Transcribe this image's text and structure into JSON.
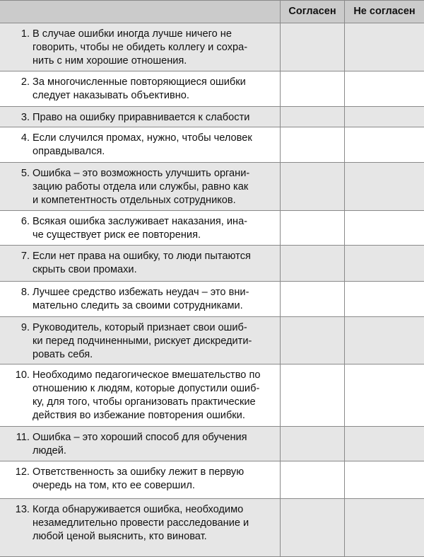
{
  "header": {
    "col_agree": "Согласен",
    "col_disagree": "Не согласен"
  },
  "colors": {
    "header_bg": "#cbcbcb",
    "odd_row_bg": "#e6e6e6",
    "even_row_bg": "#ffffff",
    "grid": "#8a8a8a"
  },
  "items": [
    {
      "num": "1.",
      "lines": [
        "В случае ошибки иногда лучше ничего не",
        "говорить, чтобы не обидеть коллегу и сохра-",
        "нить с ним хорошие отношения."
      ]
    },
    {
      "num": "2.",
      "lines": [
        "За многочисленные повторяющиеся ошибки",
        "следует наказывать объективно."
      ]
    },
    {
      "num": "3.",
      "lines": [
        "Право на ошибку приравнивается к слабости"
      ]
    },
    {
      "num": "4.",
      "lines": [
        " Если случился промах, нужно, чтобы человек",
        " оправдывался."
      ]
    },
    {
      "num": "5.",
      "lines": [
        "Ошибка – это возможность улучшить органи-",
        "зацию работы отдела или службы, равно как",
        "и компетентность отдельных сотрудников."
      ]
    },
    {
      "num": "6.",
      "lines": [
        "Всякая ошибка заслуживает наказания, ина-",
        "че существует риск ее повторения."
      ]
    },
    {
      "num": "7.",
      "lines": [
        "Если нет права на ошибку, то люди пытаются",
        "скрыть свои промахи."
      ]
    },
    {
      "num": "8.",
      "lines": [
        "Лучшее средство избежать неудач – это вни-",
        "мательно следить за своими сотрудниками."
      ]
    },
    {
      "num": "9.",
      "lines": [
        "Руководитель, который признает свои ошиб-",
        "ки перед подчиненными, рискует дискредити-",
        "ровать себя."
      ]
    },
    {
      "num": "10.",
      "lines": [
        "Необходимо педагогическое вмешательство по",
        "отношению к людям, которые допустили ошиб-",
        "ку, для того, чтобы организовать практические",
        "действия во избежание повторения ошибки."
      ]
    },
    {
      "num": "11.",
      "lines": [
        "Ошибка – это хороший способ для обучения",
        "людей."
      ]
    },
    {
      "num": "12.",
      "lines": [
        "Ответственность за ошибку лежит в первую",
        "очередь на том, кто ее совершил."
      ]
    },
    {
      "num": "13.",
      "lines": [
        "Когда обнаруживается ошибка, необходимо",
        "незамедлительно провести расследование и",
        "любой ценой выяснить, кто виноват."
      ]
    }
  ]
}
